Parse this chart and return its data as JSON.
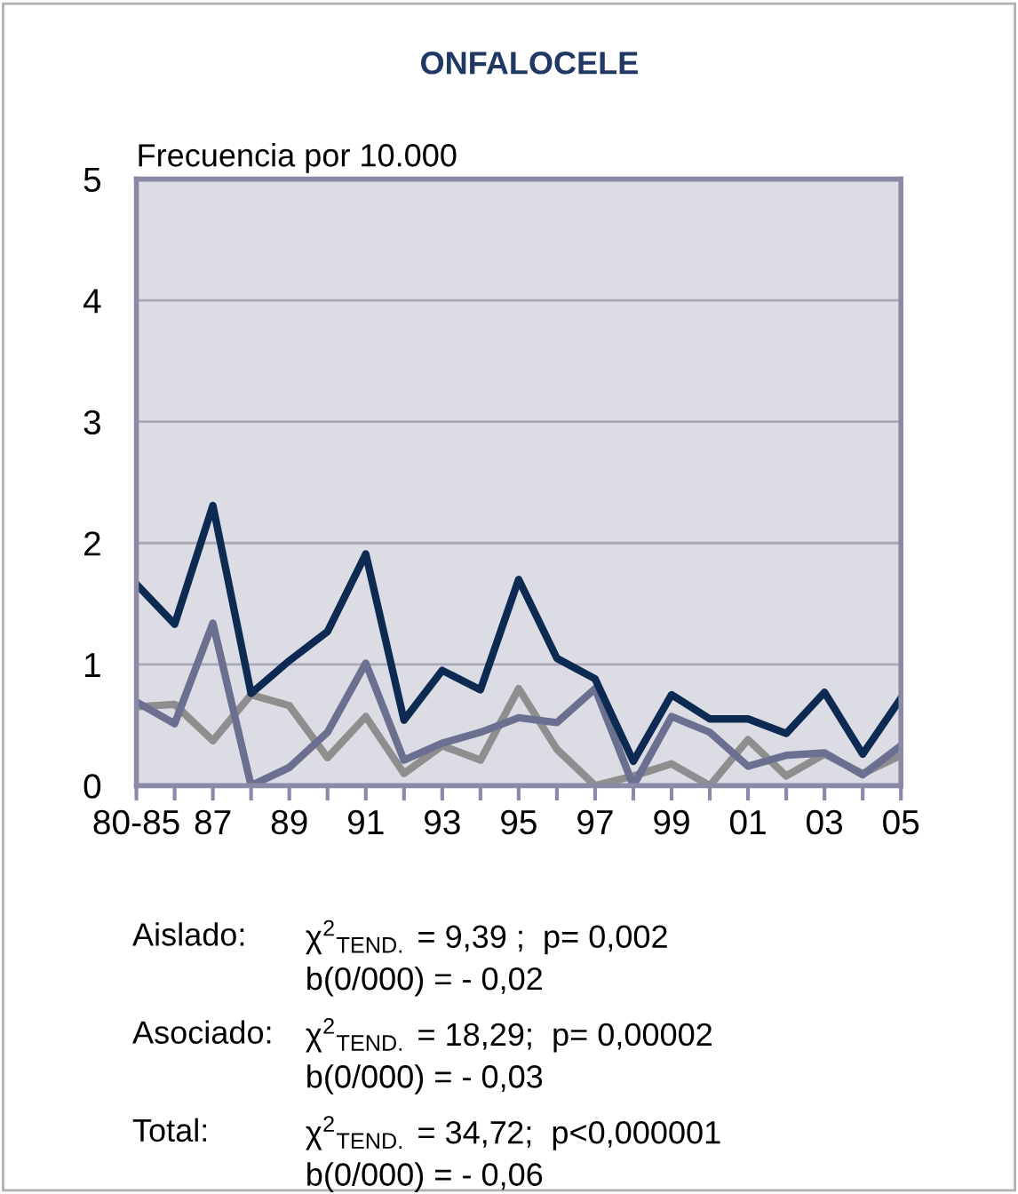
{
  "chart_data": {
    "type": "line",
    "title": "ONFALOCELE",
    "ylabel": "Frecuencia por 10.000",
    "categories": [
      "80-85",
      null,
      "87",
      null,
      "89",
      null,
      "91",
      null,
      "93",
      null,
      "95",
      null,
      "97",
      null,
      "99",
      null,
      "01",
      null,
      "03",
      null,
      "05"
    ],
    "series": [
      {
        "color": "#8e8e8e",
        "values": [
          0.65,
          0.67,
          0.37,
          0.75,
          0.66,
          0.23,
          0.57,
          0.1,
          0.33,
          0.21,
          0.8,
          0.3,
          0,
          0.08,
          0.18,
          0,
          0.38,
          0.08,
          0.26,
          0.1,
          0.25
        ]
      },
      {
        "color": "#6b7090",
        "values": [
          0.69,
          0.51,
          1.34,
          0,
          0.15,
          0.44,
          1.01,
          0.21,
          0.35,
          0.44,
          0.56,
          0.52,
          0.8,
          0,
          0.57,
          0.44,
          0.16,
          0.25,
          0.27,
          0.09,
          0.33
        ]
      },
      {
        "color": "#0d2a52",
        "values": [
          1.66,
          1.33,
          2.31,
          0.76,
          1.03,
          1.27,
          1.91,
          0.54,
          0.95,
          0.79,
          1.7,
          1.05,
          0.88,
          0.2,
          0.75,
          0.55,
          0.55,
          0.43,
          0.77,
          0.26,
          0.72
        ]
      }
    ],
    "ylim": [
      0,
      5
    ],
    "yticks": [
      0,
      1,
      2,
      3,
      4,
      5
    ],
    "grid": "y",
    "legend": false,
    "marker": "none",
    "line_style": "solid",
    "annotations": [
      "Aislado:",
      "χ$^{2}$$_{TEND.}$ = 9,39 ;  p= 0,002",
      "b(0/000) = - 0,02",
      "Asociado:",
      "χ$^{2}$$_{TEND.}$ = 18,29;  p= 0,00002",
      "b(0/000) = - 0,03",
      "Total:",
      "χ$^{2}$$_{TEND.}$ = 34,72;  p<0,000001",
      "b(0/000) = - 0,06"
    ]
  }
}
